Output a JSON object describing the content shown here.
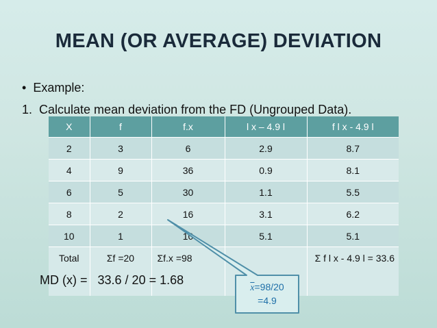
{
  "slide": {
    "title": "MEAN (OR AVERAGE) DEVIATION",
    "bullet": "Example:",
    "numbered_item": "Calculate mean deviation from the FD (Ungrouped Data)."
  },
  "table": {
    "headers": [
      "X",
      "f",
      "f.x",
      "l x – 4.9 l",
      "f l x - 4.9 l"
    ],
    "rows": [
      [
        "2",
        "3",
        "6",
        "2.9",
        "8.7"
      ],
      [
        "4",
        "9",
        "36",
        "0.9",
        "8.1"
      ],
      [
        "6",
        "5",
        "30",
        "1.1",
        "5.5"
      ],
      [
        "8",
        "2",
        "16",
        "3.1",
        "6.2"
      ],
      [
        "10",
        "1",
        "10",
        "5.1",
        "5.1"
      ]
    ],
    "total_row": [
      "Total",
      "Σf =20",
      "Σf.x =98",
      "",
      "Σ f l x - 4.9 l = 33.6"
    ]
  },
  "result": {
    "label": "MD (x) =",
    "expression": "33.6 / 20 = 1.68"
  },
  "callout": {
    "symbol": "x",
    "line1": "=98/20",
    "line2": "=4.9"
  }
}
